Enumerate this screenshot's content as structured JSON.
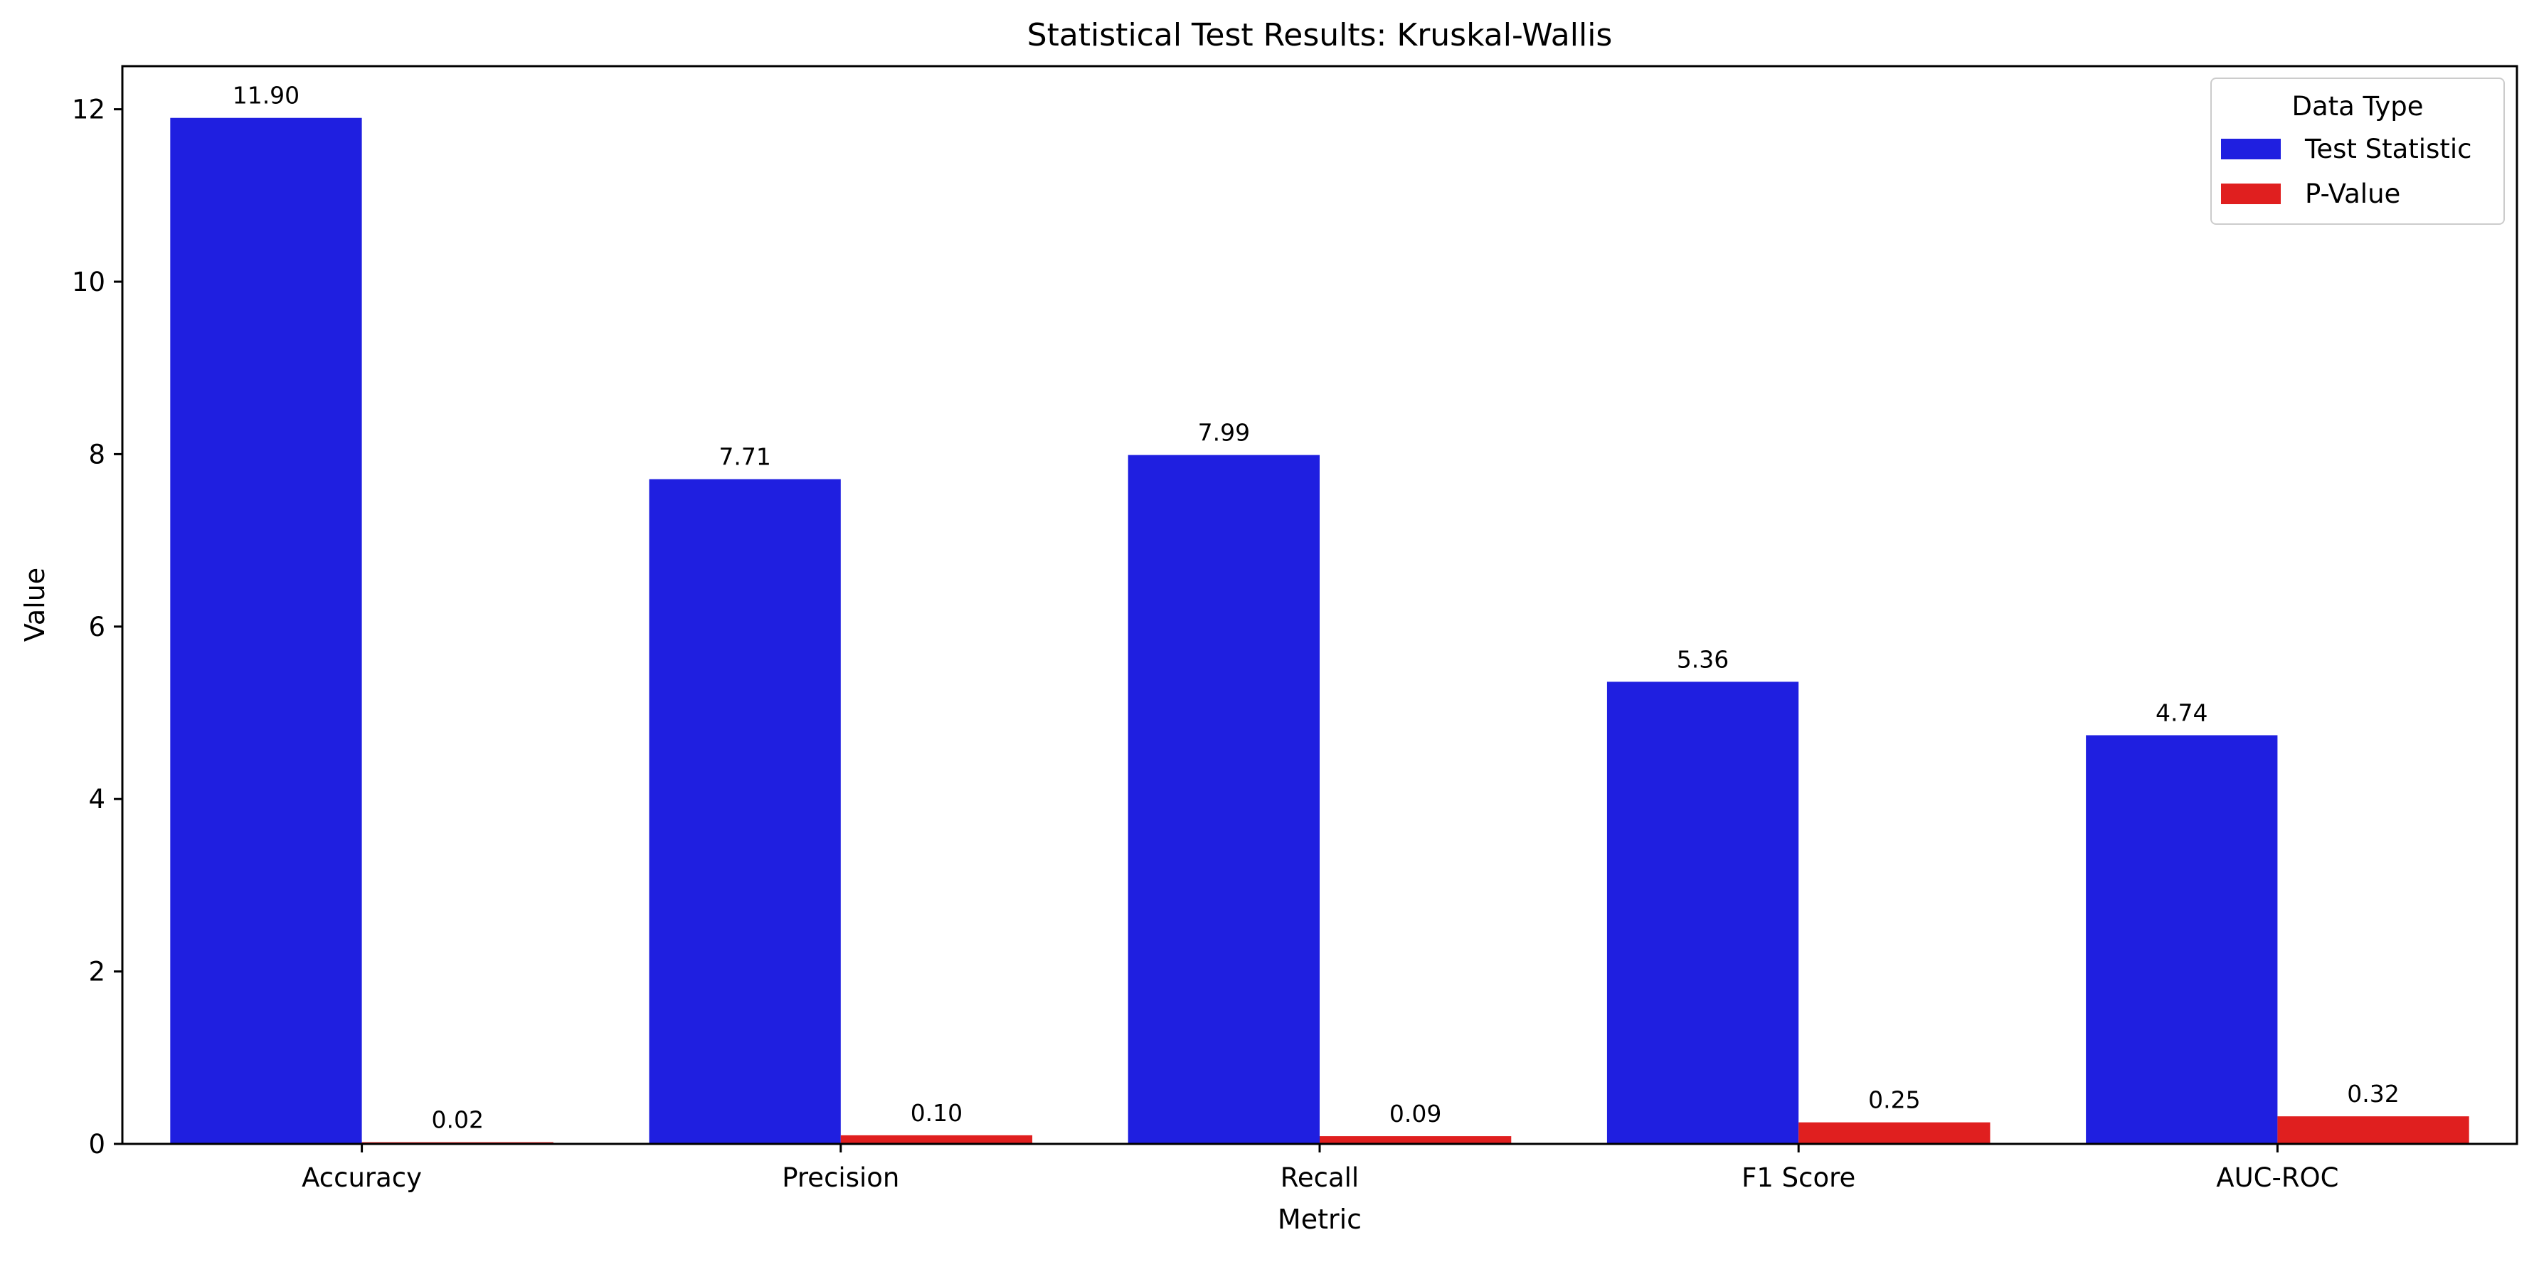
{
  "chart_data": {
    "type": "bar",
    "title": "Statistical Test Results: Kruskal-Wallis",
    "xlabel": "Metric",
    "ylabel": "Value",
    "categories": [
      "Accuracy",
      "Precision",
      "Recall",
      "F1 Score",
      "AUC-ROC"
    ],
    "series": [
      {
        "name": "Test Statistic",
        "color": "#1f1fe0",
        "values": [
          11.9,
          7.71,
          7.99,
          5.36,
          4.74
        ],
        "data_labels": [
          "11.90",
          "7.71",
          "7.99",
          "5.36",
          "4.74"
        ]
      },
      {
        "name": "P-Value",
        "color": "#e01f1f",
        "values": [
          0.02,
          0.1,
          0.09,
          0.25,
          0.32
        ],
        "data_labels": [
          "0.02",
          "0.10",
          "0.09",
          "0.25",
          "0.32"
        ]
      }
    ],
    "ylim": [
      0,
      12.5
    ],
    "yticks": [
      0,
      2,
      4,
      6,
      8,
      10,
      12
    ],
    "ytick_labels": [
      "0",
      "2",
      "4",
      "6",
      "8",
      "10",
      "12"
    ],
    "grid": false,
    "legend": {
      "title": "Data Type",
      "placement": "top-right"
    }
  }
}
